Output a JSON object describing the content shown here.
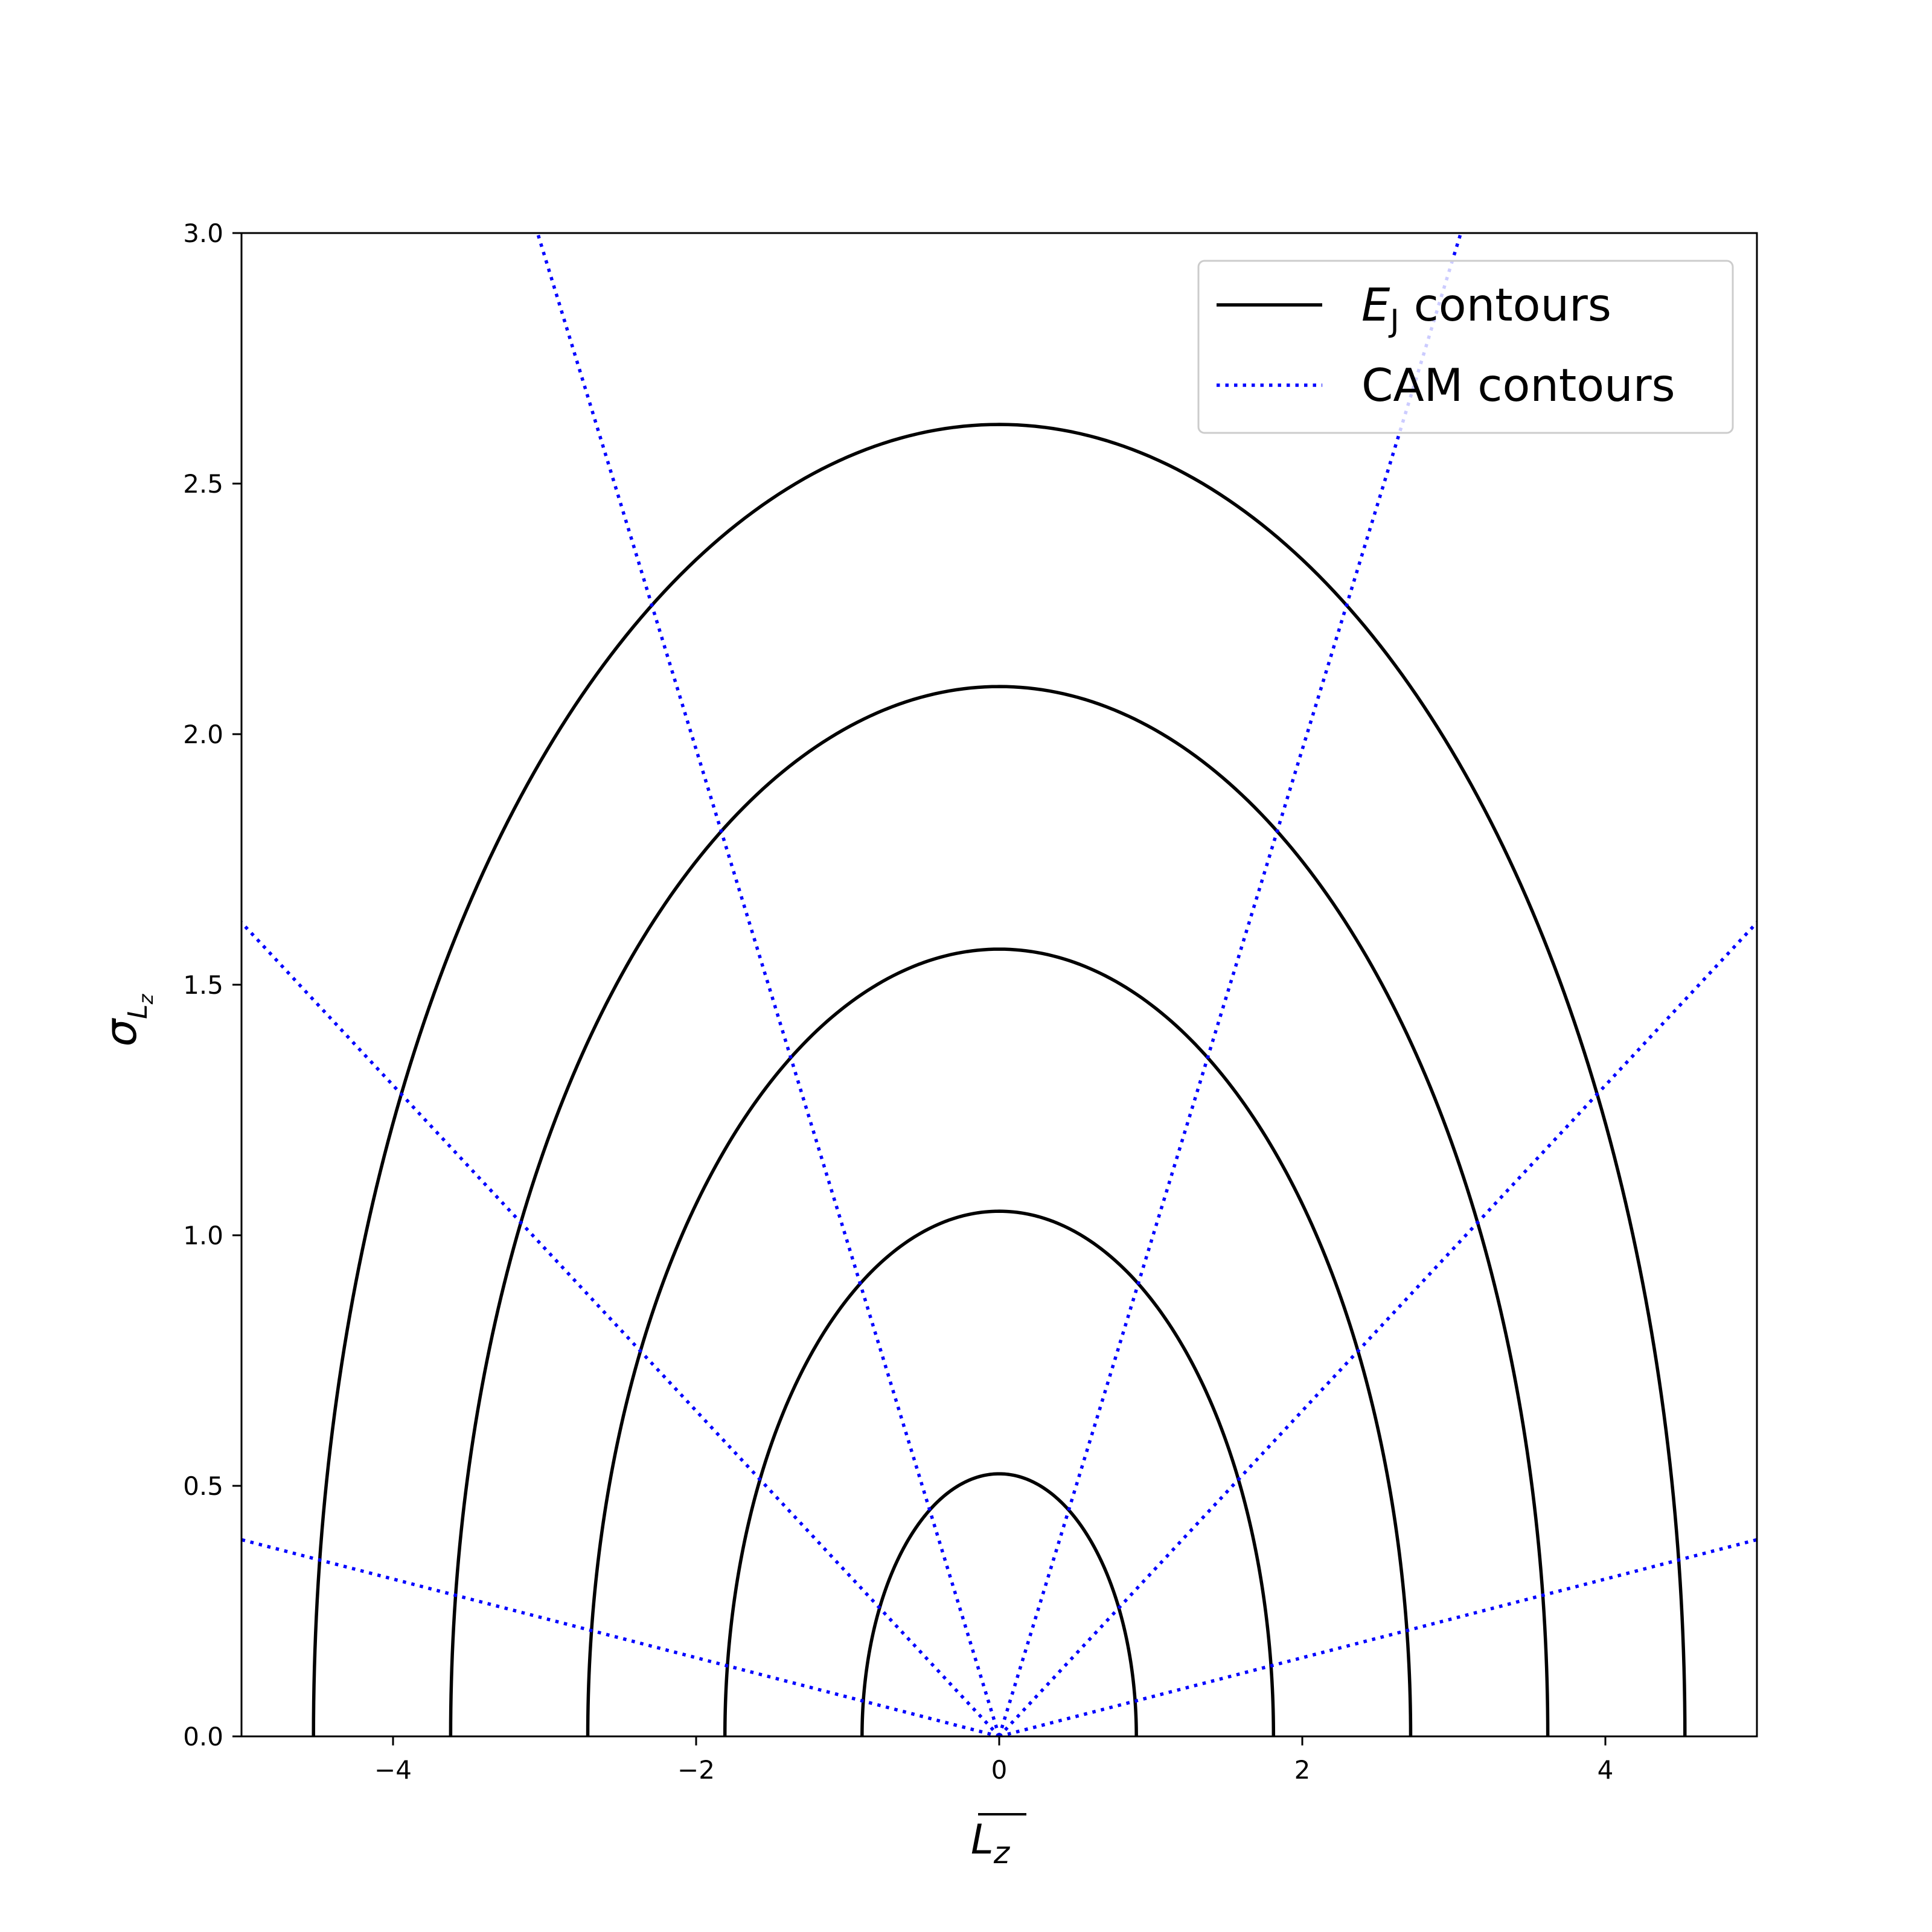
{
  "chart_data": {
    "type": "line",
    "title": "",
    "xlabel": "L_z",
    "ylabel": "σ_{L_z}",
    "xlim": [
      -5,
      5
    ],
    "ylim": [
      0,
      3
    ],
    "x_ticks": [
      -4,
      -2,
      0,
      2,
      4
    ],
    "x_tick_labels": [
      "−4",
      "−2",
      "0",
      "2",
      "4"
    ],
    "y_ticks": [
      0,
      0.5,
      1,
      1.5,
      2,
      2.5,
      3
    ],
    "y_tick_labels": [
      "0.0",
      "0.5",
      "1.0",
      "1.5",
      "2.0",
      "2.5",
      "3.0"
    ],
    "grid": false,
    "legend_position": "top-right",
    "legend": [
      {
        "label_main": "E",
        "label_sub": "J",
        "label_rest": " contours",
        "style": "solid",
        "color": "#000000"
      },
      {
        "label_main": "CAM contours",
        "label_sub": "",
        "label_rest": "",
        "style": "dotted",
        "color": "#0000ff"
      }
    ],
    "series": [
      {
        "name": "E_J contours",
        "kind": "semi-ellipse",
        "color": "#000000",
        "contours": [
          {
            "half_width": 0.905,
            "peak": 0.524
          },
          {
            "half_width": 1.81,
            "peak": 1.048
          },
          {
            "half_width": 2.715,
            "peak": 1.571
          },
          {
            "half_width": 3.62,
            "peak": 2.095
          },
          {
            "half_width": 4.525,
            "peak": 2.618
          }
        ]
      },
      {
        "name": "CAM contours",
        "kind": "ray-from-origin",
        "color": "#0000ff",
        "slopes": [
          0.0785,
          0.3248,
          0.9848
        ]
      }
    ]
  }
}
